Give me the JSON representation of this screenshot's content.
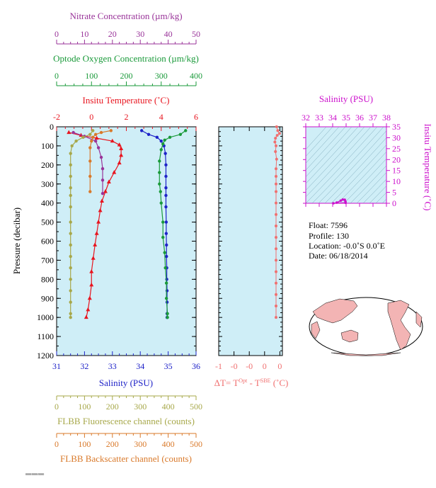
{
  "colors": {
    "nitrate": "#993399",
    "oxygen": "#1a9a3a",
    "temperature": "#e8141e",
    "salinity": "#1e22c8",
    "fluorescence": "#a7a84a",
    "backscatter": "#d9792a",
    "delta_t": "#f07070",
    "magenta": "#cc10cc",
    "panel_bg": "#cfeef7",
    "map_land": "#f3b4b4",
    "map_ocean": "#ffffff"
  },
  "text": {
    "nitrate_title": "Nitrate Concentration (µm/kg)",
    "oxygen_title": "Optode Oxygen Concentration (µm/kg)",
    "temp_title": "Insitu Temperature (˚C)",
    "salinity_title": "Salinity (PSU)",
    "pressure_title": "Pressure (decibar)",
    "fluor_title": "FLBB Fluorescence channel (counts)",
    "backscatter_title": "FLBB Backscatter channel (counts)",
    "ts_salinity_title": "Salinity (PSU)",
    "ts_temp_title": "Insitu Temperature (˚C)",
    "dt_title_prefix": "ΔT= T",
    "dt_sup1": "Opt",
    "dt_mid": " - T",
    "dt_sup2": "SBE",
    "dt_suffix": " (˚C)",
    "footer": "0000/0000/0000"
  },
  "info": {
    "float": "Float:  7596",
    "profile": "Profile:  130",
    "location": "Location:  -0.0˚S   0.0˚E",
    "date": "Date:  06/18/2014"
  },
  "chart_data": [
    {
      "type": "line",
      "name": "main-profile",
      "ylabel": "Pressure (decibar)",
      "ylim": [
        1200,
        0
      ],
      "y_ticks": [
        "0",
        "100",
        "200",
        "300",
        "400",
        "500",
        "600",
        "700",
        "800",
        "900",
        "1000",
        "1100",
        "1200"
      ],
      "axes": {
        "nitrate": {
          "label": "Nitrate Concentration (µm/kg)",
          "lim": [
            0,
            50
          ],
          "ticks": [
            "0",
            "10",
            "20",
            "30",
            "40",
            "50"
          ]
        },
        "oxygen": {
          "label": "Optode Oxygen Concentration (µm/kg)",
          "lim": [
            0,
            400
          ],
          "ticks": [
            "0",
            "100",
            "200",
            "300",
            "400"
          ]
        },
        "temperature": {
          "label": "Insitu Temperature (˚C)",
          "lim": [
            -2,
            6
          ],
          "ticks": [
            "-2",
            "0",
            "2",
            "4",
            "6"
          ]
        },
        "salinity": {
          "label": "Salinity (PSU)",
          "lim": [
            31,
            36
          ],
          "ticks": [
            "31",
            "32",
            "33",
            "34",
            "35",
            "36"
          ]
        },
        "fluorescence": {
          "label": "FLBB Fluorescence channel (counts)",
          "lim": [
            0,
            500
          ],
          "ticks": [
            "0",
            "100",
            "200",
            "300",
            "400",
            "500"
          ]
        },
        "backscatter": {
          "label": "FLBB Backscatter channel (counts)",
          "lim": [
            0,
            500
          ],
          "ticks": [
            "0",
            "100",
            "200",
            "300",
            "400",
            "500"
          ]
        }
      },
      "series": [
        {
          "key": "temperature",
          "marker": "triangle",
          "points": [
            [
              -1.3,
              30
            ],
            [
              -0.6,
              45
            ],
            [
              0.3,
              60
            ],
            [
              1.2,
              75
            ],
            [
              1.6,
              95
            ],
            [
              1.7,
              115
            ],
            [
              1.7,
              150
            ],
            [
              1.6,
              190
            ],
            [
              1.3,
              240
            ],
            [
              1.0,
              290
            ],
            [
              0.8,
              340
            ],
            [
              0.6,
              390
            ],
            [
              0.5,
              440
            ],
            [
              0.4,
              500
            ],
            [
              0.3,
              560
            ],
            [
              0.2,
              620
            ],
            [
              0.1,
              690
            ],
            [
              0.0,
              760
            ],
            [
              0.0,
              830
            ],
            [
              -0.1,
              900
            ],
            [
              -0.2,
              960
            ],
            [
              -0.3,
              1000
            ]
          ]
        },
        {
          "key": "salinity",
          "marker": "circle",
          "points": [
            [
              34.05,
              20
            ],
            [
              34.3,
              40
            ],
            [
              34.6,
              55
            ],
            [
              34.75,
              75
            ],
            [
              34.85,
              100
            ],
            [
              34.9,
              140
            ],
            [
              34.92,
              200
            ],
            [
              34.92,
              260
            ],
            [
              34.92,
              320
            ],
            [
              34.92,
              360
            ],
            [
              34.92,
              420
            ],
            [
              34.93,
              500
            ],
            [
              34.93,
              560
            ],
            [
              34.94,
              620
            ],
            [
              34.94,
              680
            ],
            [
              34.95,
              740
            ],
            [
              34.95,
              800
            ],
            [
              34.96,
              860
            ],
            [
              34.96,
              920
            ],
            [
              34.96,
              980
            ],
            [
              34.96,
              1000
            ]
          ]
        },
        {
          "key": "oxygen",
          "marker": "circle",
          "points": [
            [
              370,
              20
            ],
            [
              355,
              40
            ],
            [
              325,
              55
            ],
            [
              310,
              70
            ],
            [
              305,
              90
            ],
            [
              300,
              120
            ],
            [
              295,
              180
            ],
            [
              295,
              240
            ],
            [
              295,
              300
            ],
            [
              298,
              340
            ],
            [
              300,
              400
            ],
            [
              305,
              500
            ],
            [
              305,
              580
            ],
            [
              310,
              660
            ],
            [
              312,
              740
            ],
            [
              315,
              820
            ],
            [
              315,
              900
            ],
            [
              318,
              980
            ],
            [
              318,
              1000
            ]
          ]
        },
        {
          "key": "nitrate",
          "marker": "circle",
          "points": [
            [
              6,
              30
            ],
            [
              10,
              50
            ],
            [
              14,
              75
            ],
            [
              15,
              110
            ],
            [
              16,
              160
            ],
            [
              16.5,
              220
            ],
            [
              16.5,
              280
            ],
            [
              16.5,
              350
            ]
          ]
        },
        {
          "key": "fluorescence",
          "marker": "circle",
          "points": [
            [
              130,
              20
            ],
            [
              120,
              40
            ],
            [
              95,
              55
            ],
            [
              70,
              75
            ],
            [
              55,
              100
            ],
            [
              50,
              140
            ],
            [
              50,
              200
            ],
            [
              50,
              260
            ],
            [
              50,
              320
            ],
            [
              50,
              360
            ],
            [
              50,
              420
            ],
            [
              50,
              500
            ],
            [
              50,
              560
            ],
            [
              50,
              620
            ],
            [
              50,
              680
            ],
            [
              50,
              740
            ],
            [
              50,
              800
            ],
            [
              50,
              860
            ],
            [
              50,
              920
            ],
            [
              50,
              980
            ],
            [
              50,
              1000
            ]
          ]
        },
        {
          "key": "backscatter",
          "marker": "circle",
          "points": [
            [
              195,
              20
            ],
            [
              160,
              30
            ],
            [
              140,
              40
            ],
            [
              130,
              55
            ],
            [
              125,
              75
            ],
            [
              120,
              110
            ],
            [
              120,
              180
            ],
            [
              120,
              260
            ],
            [
              120,
              340
            ]
          ]
        }
      ]
    },
    {
      "type": "line",
      "name": "delta-t",
      "xlabel": "ΔT= T Opt - T SBE (˚C)",
      "xlim": [
        -1,
        0.1
      ],
      "x_ticks": [
        "-1",
        "-0",
        "-0",
        "0",
        "0"
      ],
      "ylim": [
        1200,
        0
      ],
      "points": [
        [
          0,
          0
        ],
        [
          0.02,
          20
        ],
        [
          0.05,
          35
        ],
        [
          0.01,
          45
        ],
        [
          -0.02,
          60
        ],
        [
          -0.03,
          80
        ],
        [
          -0.01,
          100
        ],
        [
          -0.02,
          130
        ],
        [
          0.0,
          170
        ],
        [
          -0.01,
          220
        ],
        [
          -0.01,
          260
        ],
        [
          -0.01,
          300
        ],
        [
          -0.01,
          340
        ],
        [
          -0.01,
          400
        ],
        [
          -0.01,
          460
        ],
        [
          -0.01,
          520
        ],
        [
          -0.01,
          580
        ],
        [
          -0.01,
          640
        ],
        [
          -0.01,
          700
        ],
        [
          -0.01,
          760
        ],
        [
          -0.01,
          820
        ],
        [
          -0.01,
          880
        ],
        [
          -0.01,
          940
        ],
        [
          -0.01,
          1000
        ]
      ]
    },
    {
      "type": "scatter",
      "name": "ts-diagram",
      "xlabel": "Salinity (PSU)",
      "ylabel": "Insitu Temperature (˚C)",
      "xlim": [
        32,
        38
      ],
      "ylim": [
        0,
        35
      ],
      "x_ticks": [
        "32",
        "33",
        "34",
        "35",
        "36",
        "37",
        "38"
      ],
      "y_ticks": [
        "0",
        "5",
        "10",
        "15",
        "20",
        "25",
        "30",
        "35"
      ],
      "points": [
        [
          34.3,
          0.3
        ],
        [
          34.6,
          1.2
        ],
        [
          34.75,
          1.7
        ],
        [
          34.9,
          1.6
        ],
        [
          34.95,
          0.8
        ],
        [
          34.96,
          0.2
        ],
        [
          34.05,
          -0.3
        ]
      ]
    }
  ]
}
